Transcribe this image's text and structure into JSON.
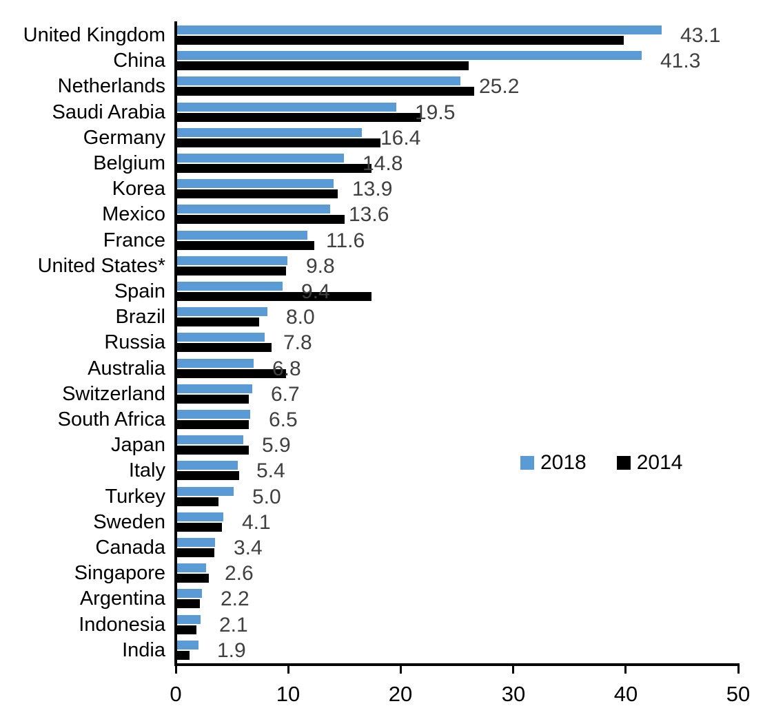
{
  "chart_data": {
    "type": "bar",
    "orientation": "horizontal",
    "title": "",
    "xlabel": "",
    "ylabel": "",
    "xlim": [
      0,
      50
    ],
    "x_ticks": [
      0,
      10,
      20,
      30,
      40,
      50
    ],
    "grid": false,
    "legend_position": "middle-right",
    "categories": [
      "United Kingdom",
      "China",
      "Netherlands",
      "Saudi Arabia",
      "Germany",
      "Belgium",
      "Korea",
      "Mexico",
      "France",
      "United States*",
      "Spain",
      "Brazil",
      "Russia",
      "Australia",
      "Switzerland",
      "South Africa",
      "Japan",
      "Italy",
      "Turkey",
      "Sweden",
      "Canada",
      "Singapore",
      "Argentina",
      "Indonesia",
      "India"
    ],
    "series": [
      {
        "name": "2018",
        "color": "#5B9BD5",
        "values": [
          43.1,
          41.3,
          25.2,
          19.5,
          16.4,
          14.8,
          13.9,
          13.6,
          11.6,
          9.8,
          9.4,
          8.0,
          7.8,
          6.8,
          6.7,
          6.5,
          5.9,
          5.4,
          5.0,
          4.1,
          3.4,
          2.6,
          2.2,
          2.1,
          1.9
        ]
      },
      {
        "name": "2014",
        "color": "#000000",
        "values": [
          39.7,
          25.9,
          26.4,
          21.7,
          18.1,
          17.3,
          14.3,
          14.9,
          12.2,
          9.7,
          17.3,
          7.3,
          8.4,
          9.7,
          6.4,
          6.4,
          6.4,
          5.5,
          3.7,
          4.0,
          3.3,
          2.8,
          2.0,
          1.7,
          1.1
        ]
      }
    ],
    "value_labels": {
      "series": "2018",
      "values": [
        "43.1",
        "41.3",
        "25.2",
        "19.5",
        "16.4",
        "14.8",
        "13.9",
        "13.6",
        "11.6",
        "9.8",
        "9.4",
        "8.0",
        "7.8",
        "6.8",
        "6.7",
        "6.5",
        "5.9",
        "5.4",
        "5.0",
        "4.1",
        "3.4",
        "2.6",
        "2.2",
        "2.1",
        "1.9"
      ]
    }
  },
  "colors": {
    "series_2018": "#5B9BD5",
    "series_2014": "#000000",
    "value_label": "#404040",
    "axis": "#000000",
    "background": "#ffffff"
  },
  "legend": {
    "entry_2018": "2018",
    "entry_2014": "2014"
  }
}
